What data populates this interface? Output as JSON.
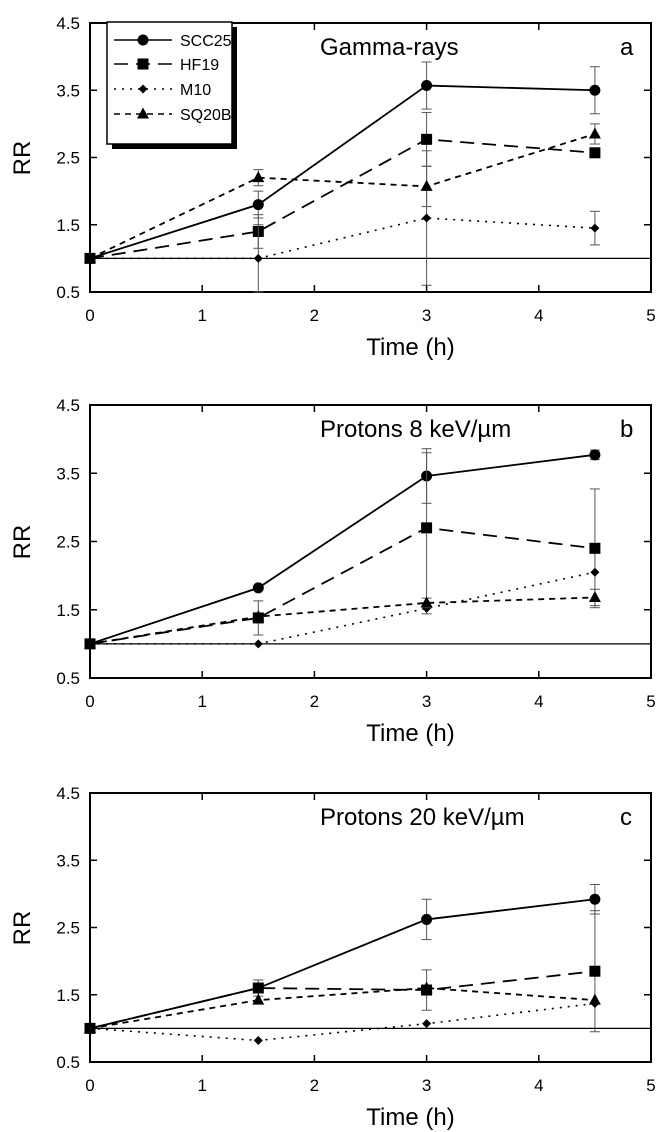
{
  "chart_data": [
    {
      "type": "line",
      "title": "Gamma-rays",
      "panel_letter": "a",
      "xlabel": "Time (h)",
      "ylabel": "RR",
      "xlim": [
        0,
        5
      ],
      "ylim": [
        0.5,
        4.5
      ],
      "xticks": [
        "0",
        "1",
        "2",
        "3",
        "4",
        "5"
      ],
      "yticks": [
        "0.5",
        "1.5",
        "2.5",
        "3.5",
        "4.5"
      ],
      "x": [
        0,
        1.5,
        3,
        4.5
      ],
      "reference_line": 1.0,
      "legend": {
        "placement": "top-left",
        "entries": [
          "SCC25",
          "HF19",
          "M10",
          "SQ20B"
        ]
      },
      "series": [
        {
          "name": "SCC25",
          "marker": "circle",
          "dash": "solid",
          "values": [
            1.0,
            1.8,
            3.57,
            3.5
          ],
          "errors": [
            0,
            0.2,
            0.35,
            0.35
          ]
        },
        {
          "name": "HF19",
          "marker": "square",
          "dash": "longdash",
          "values": [
            1.0,
            1.4,
            2.77,
            2.57
          ],
          "errors": [
            0,
            0.25,
            0.4,
            0
          ]
        },
        {
          "name": "M10",
          "marker": "diamond",
          "dash": "dotted",
          "values": [
            1.0,
            1.0,
            1.6,
            1.45
          ],
          "errors": [
            0,
            0.5,
            1.0,
            0.25
          ]
        },
        {
          "name": "SQ20B",
          "marker": "triangle",
          "dash": "shortdash",
          "values": [
            1.0,
            2.2,
            2.07,
            2.85
          ],
          "errors": [
            0,
            0.12,
            0.3,
            0.15
          ]
        }
      ]
    },
    {
      "type": "line",
      "title": "Protons 8 keV/µm",
      "panel_letter": "b",
      "xlabel": "Time (h)",
      "ylabel": "RR",
      "xlim": [
        0,
        5
      ],
      "ylim": [
        0.5,
        4.5
      ],
      "xticks": [
        "0",
        "1",
        "2",
        "3",
        "4",
        "5"
      ],
      "yticks": [
        "0.5",
        "1.5",
        "2.5",
        "3.5",
        "4.5"
      ],
      "x": [
        0,
        1.5,
        3,
        4.5
      ],
      "reference_line": 1.0,
      "series": [
        {
          "name": "SCC25",
          "marker": "circle",
          "dash": "solid",
          "values": [
            1.0,
            1.82,
            3.46,
            3.77
          ],
          "errors": [
            0,
            0,
            0.4,
            0.07
          ]
        },
        {
          "name": "HF19",
          "marker": "square",
          "dash": "longdash",
          "values": [
            1.0,
            1.38,
            2.7,
            2.4
          ],
          "errors": [
            0,
            0.25,
            1.1,
            0.87
          ]
        },
        {
          "name": "M10",
          "marker": "diamond",
          "dash": "dotted",
          "values": [
            1.0,
            1.0,
            1.52,
            2.05
          ],
          "errors": [
            0,
            0,
            0.08,
            0
          ]
        },
        {
          "name": "SQ20B",
          "marker": "triangle",
          "dash": "shortdash",
          "values": [
            1.0,
            1.4,
            1.6,
            1.68
          ],
          "errors": [
            0,
            0,
            0.07,
            0.12
          ]
        }
      ]
    },
    {
      "type": "line",
      "title": "Protons 20 keV/µm",
      "panel_letter": "c",
      "xlabel": "Time (h)",
      "ylabel": "RR",
      "xlim": [
        0,
        5
      ],
      "ylim": [
        0.5,
        4.5
      ],
      "xticks": [
        "0",
        "1",
        "2",
        "3",
        "4",
        "5"
      ],
      "yticks": [
        "0.5",
        "1.5",
        "2.5",
        "3.5",
        "4.5"
      ],
      "x": [
        0,
        1.5,
        3,
        4.5
      ],
      "reference_line": 1.0,
      "series": [
        {
          "name": "SCC25",
          "marker": "circle",
          "dash": "solid",
          "values": [
            1.0,
            1.6,
            2.62,
            2.92
          ],
          "errors": [
            0,
            0.12,
            0.3,
            0.22
          ]
        },
        {
          "name": "HF19",
          "marker": "square",
          "dash": "longdash",
          "values": [
            1.0,
            1.6,
            1.57,
            1.85
          ],
          "errors": [
            0,
            0,
            0.3,
            0.9
          ]
        },
        {
          "name": "M10",
          "marker": "diamond",
          "dash": "dotted",
          "values": [
            1.0,
            0.82,
            1.07,
            1.37
          ],
          "errors": [
            0,
            0,
            0,
            0
          ]
        },
        {
          "name": "SQ20B",
          "marker": "triangle",
          "dash": "shortdash",
          "values": [
            1.0,
            1.42,
            1.6,
            1.42
          ],
          "errors": [
            0,
            0,
            0,
            0
          ]
        }
      ]
    }
  ]
}
